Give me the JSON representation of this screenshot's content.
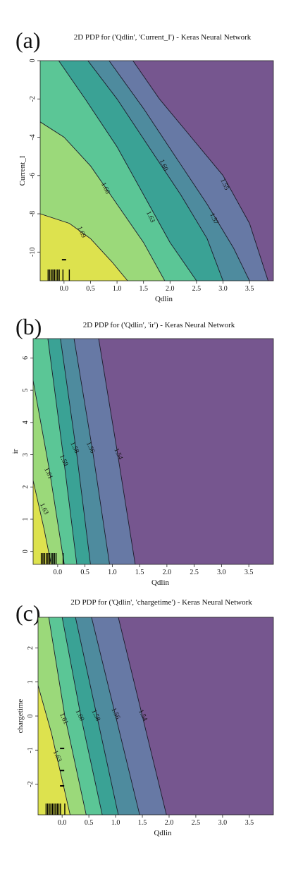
{
  "chart_data": [
    {
      "panel_label": "(a)",
      "type": "contour",
      "title": "2D PDP for ('Qdlin', 'Current_I') - Keras Neural Network",
      "xlabel": "Qdlin",
      "ylabel": "Current_I",
      "xlim": [
        -0.45,
        3.95
      ],
      "ylim": [
        -11.5,
        0
      ],
      "xticks": [
        0.0,
        0.5,
        1.0,
        1.5,
        2.0,
        2.5,
        3.0,
        3.5
      ],
      "xtick_labels": [
        "0.0",
        "0.5",
        "1.0",
        "1.5",
        "2.0",
        "2.5",
        "3.0",
        "3.5"
      ],
      "yticks": [
        0,
        -2,
        -4,
        -6,
        -8,
        -10
      ],
      "ytick_labels": [
        "0",
        "-2",
        "-4",
        "-6",
        "-8",
        "-10"
      ],
      "fill_colors": [
        "#dde24e",
        "#9bd97a",
        "#5bc696",
        "#3aa295",
        "#4e8b9e",
        "#6779a5",
        "#76568f"
      ],
      "contours": [
        {
          "level": 1.69,
          "label": "1.69",
          "points": [
            [
              -0.45,
              -8.0
            ],
            [
              0.1,
              -8.5
            ],
            [
              0.5,
              -9.3
            ],
            [
              0.9,
              -10.5
            ],
            [
              1.2,
              -11.5
            ]
          ],
          "label_at": [
            0.3,
            -9.0
          ]
        },
        {
          "level": 1.66,
          "label": "1.66",
          "points": [
            [
              -0.45,
              -3.2
            ],
            [
              0.0,
              -4.0
            ],
            [
              0.5,
              -5.5
            ],
            [
              1.0,
              -7.5
            ],
            [
              1.5,
              -9.5
            ],
            [
              1.9,
              -11.5
            ]
          ],
          "label_at": [
            0.75,
            -6.7
          ]
        },
        {
          "level": 1.63,
          "label": "1.63",
          "points": [
            [
              -0.1,
              0.0
            ],
            [
              0.4,
              -2.0
            ],
            [
              1.0,
              -4.5
            ],
            [
              1.5,
              -7.0
            ],
            [
              2.0,
              -9.5
            ],
            [
              2.5,
              -11.5
            ]
          ],
          "label_at": [
            1.6,
            -8.2
          ]
        },
        {
          "level": 1.6,
          "label": "1.60",
          "points": [
            [
              0.45,
              0.0
            ],
            [
              1.0,
              -2.0
            ],
            [
              1.6,
              -4.5
            ],
            [
              2.2,
              -7.0
            ],
            [
              2.7,
              -9.3
            ],
            [
              3.0,
              -11.5
            ]
          ],
          "label_at": [
            1.85,
            -5.5
          ]
        },
        {
          "level": 1.57,
          "label": "1.57",
          "points": [
            [
              0.85,
              0.0
            ],
            [
              1.5,
              -2.5
            ],
            [
              2.1,
              -5.0
            ],
            [
              2.7,
              -7.5
            ],
            [
              3.2,
              -9.8
            ],
            [
              3.5,
              -11.5
            ]
          ],
          "label_at": [
            2.8,
            -8.3
          ]
        },
        {
          "level": 1.55,
          "label": "1.55",
          "points": [
            [
              1.3,
              0.0
            ],
            [
              1.8,
              -2.0
            ],
            [
              2.4,
              -4.0
            ],
            [
              3.0,
              -6.0
            ],
            [
              3.5,
              -8.5
            ],
            [
              3.85,
              -11.5
            ]
          ],
          "label_at": [
            3.0,
            -6.5
          ]
        }
      ],
      "rug_x": [
        -0.3,
        -0.27,
        -0.24,
        -0.21,
        -0.18,
        -0.15,
        -0.12,
        -0.09,
        -0.02,
        0.1
      ],
      "rug_y": [
        -10.4
      ]
    },
    {
      "panel_label": "(b)",
      "type": "contour",
      "title": "2D PDP for ('Qdlin', 'ir') - Keras Neural Network",
      "xlabel": "Qdlin",
      "ylabel": "ir",
      "xlim": [
        -0.45,
        3.95
      ],
      "ylim": [
        -0.4,
        6.6
      ],
      "xticks": [
        0.0,
        0.5,
        1.0,
        1.5,
        2.0,
        2.5,
        3.0,
        3.5
      ],
      "xtick_labels": [
        "0.0",
        "0.5",
        "1.0",
        "1.5",
        "2.0",
        "2.5",
        "3.0",
        "3.5"
      ],
      "yticks": [
        0,
        1,
        2,
        3,
        4,
        5,
        6
      ],
      "ytick_labels": [
        "0",
        "1",
        "2",
        "3",
        "4",
        "5",
        "6"
      ],
      "fill_colors": [
        "#dde24e",
        "#9bd97a",
        "#5bc696",
        "#3aa295",
        "#4e8b9e",
        "#6779a5",
        "#76568f"
      ],
      "contours": [
        {
          "level": 1.63,
          "label": "1.63",
          "points": [
            [
              -0.45,
              2.2
            ],
            [
              -0.25,
              0.7
            ],
            [
              -0.12,
              -0.4
            ]
          ],
          "label_at": [
            -0.28,
            1.3
          ]
        },
        {
          "level": 1.61,
          "label": "1.61",
          "points": [
            [
              -0.45,
              5.3
            ],
            [
              -0.15,
              2.5
            ],
            [
              0.12,
              -0.4
            ]
          ],
          "label_at": [
            -0.2,
            2.4
          ]
        },
        {
          "level": 1.59,
          "label": "1.59",
          "points": [
            [
              -0.18,
              6.6
            ],
            [
              0.1,
              3.0
            ],
            [
              0.35,
              -0.4
            ]
          ],
          "label_at": [
            0.08,
            2.8
          ]
        },
        {
          "level": 1.58,
          "label": "1.58",
          "points": [
            [
              0.05,
              6.6
            ],
            [
              0.35,
              3.0
            ],
            [
              0.6,
              -0.4
            ]
          ],
          "label_at": [
            0.28,
            3.2
          ]
        },
        {
          "level": 1.56,
          "label": "1.56",
          "points": [
            [
              0.3,
              6.6
            ],
            [
              0.65,
              3.0
            ],
            [
              0.95,
              -0.4
            ]
          ],
          "label_at": [
            0.57,
            3.2
          ]
        },
        {
          "level": 1.54,
          "label": "1.54",
          "points": [
            [
              0.75,
              6.6
            ],
            [
              1.1,
              3.0
            ],
            [
              1.42,
              -0.4
            ]
          ],
          "label_at": [
            1.08,
            3.0
          ]
        }
      ],
      "rug_x": [
        -0.3,
        -0.27,
        -0.24,
        -0.21,
        -0.18,
        -0.15,
        -0.12,
        -0.09,
        -0.06,
        -0.03,
        0.1
      ],
      "rug_y": []
    },
    {
      "panel_label": "(c)",
      "type": "contour",
      "title": "2D PDP for ('Qdlin', 'chargetime') - Keras Neural Network",
      "xlabel": "Qdlin",
      "ylabel": "chargetime",
      "xlim": [
        -0.45,
        3.95
      ],
      "ylim": [
        -2.9,
        2.9
      ],
      "xticks": [
        0.0,
        0.5,
        1.0,
        1.5,
        2.0,
        2.5,
        3.0,
        3.5
      ],
      "xtick_labels": [
        "0.0",
        "0.5",
        "1.0",
        "1.5",
        "2.0",
        "2.5",
        "3.0",
        "3.5"
      ],
      "yticks": [
        2,
        1,
        0,
        -1,
        -2
      ],
      "ytick_labels": [
        "2",
        "1",
        "0",
        "-1",
        "-2"
      ],
      "fill_colors": [
        "#dde24e",
        "#9bd97a",
        "#5bc696",
        "#3aa295",
        "#4e8b9e",
        "#6779a5",
        "#76568f"
      ],
      "contours": [
        {
          "level": 1.63,
          "label": "1.63",
          "points": [
            [
              -0.45,
              0.9
            ],
            [
              -0.2,
              -0.5
            ],
            [
              0.15,
              -2.9
            ]
          ],
          "label_at": [
            -0.12,
            -1.2
          ]
        },
        {
          "level": 1.61,
          "label": "1.61",
          "points": [
            [
              -0.25,
              2.9
            ],
            [
              0.05,
              0.0
            ],
            [
              0.45,
              -2.9
            ]
          ],
          "label_at": [
            0.0,
            -0.1
          ]
        },
        {
          "level": 1.6,
          "label": "1.60",
          "points": [
            [
              0.0,
              2.9
            ],
            [
              0.35,
              0.0
            ],
            [
              0.75,
              -2.9
            ]
          ],
          "label_at": [
            0.3,
            0.0
          ]
        },
        {
          "level": 1.58,
          "label": "1.58",
          "points": [
            [
              0.25,
              2.9
            ],
            [
              0.65,
              0.0
            ],
            [
              1.05,
              -2.9
            ]
          ],
          "label_at": [
            0.6,
            0.0
          ]
        },
        {
          "level": 1.56,
          "label": "1.56",
          "points": [
            [
              0.55,
              2.9
            ],
            [
              1.0,
              0.0
            ],
            [
              1.45,
              -2.9
            ]
          ],
          "label_at": [
            0.97,
            0.05
          ]
        },
        {
          "level": 1.54,
          "label": "1.54",
          "points": [
            [
              1.05,
              2.9
            ],
            [
              1.5,
              0.0
            ],
            [
              1.95,
              -2.9
            ]
          ],
          "label_at": [
            1.48,
            0.0
          ]
        }
      ],
      "rug_x": [
        -0.3,
        -0.27,
        -0.24,
        -0.21,
        -0.18,
        -0.15,
        -0.12,
        -0.09,
        -0.06,
        -0.03,
        0.05
      ],
      "rug_y": [
        -0.95,
        -1.6,
        -2.05
      ]
    }
  ]
}
